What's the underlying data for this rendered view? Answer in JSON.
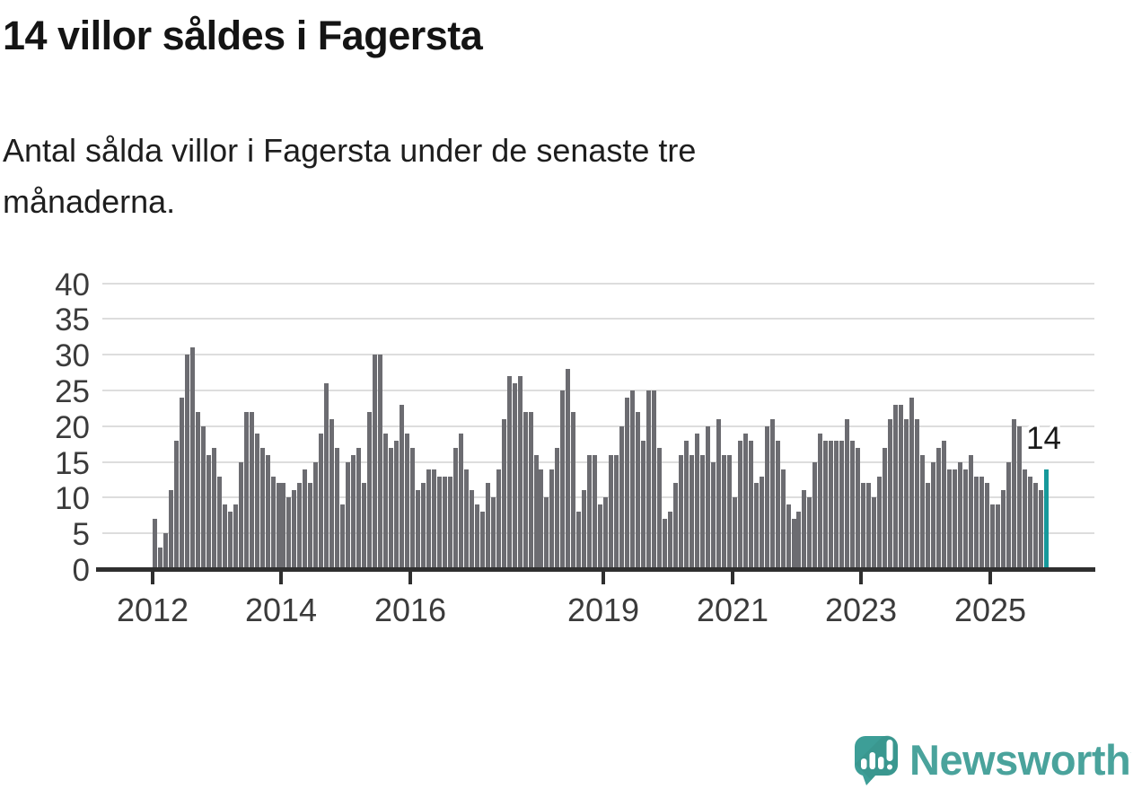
{
  "title": "14 villor såldes i Fagersta",
  "subtitle": "Antal sålda villor i Fagersta under de senaste tre månaderna.",
  "subtitle_line1": "Antal sålda villor i Fagersta under de senaste tre",
  "subtitle_line2": "månaderna.",
  "annotation": {
    "value_label": "14"
  },
  "branding": {
    "name": "Newsworthy"
  },
  "colors": {
    "bar": "#6c6c71",
    "highlight": "#16999b",
    "axis": "#2f2f2f",
    "grid": "#dddddd",
    "tick_label": "#3b3b3b",
    "brand_bubble": "#3d9e97",
    "brand_text": "#4aa39c"
  },
  "chart_data": {
    "type": "bar",
    "title": "14 villor såldes i Fagersta",
    "subtitle": "Antal sålda villor i Fagersta under de senaste tre månaderna.",
    "x_start_month": "2012-01",
    "x_end_month": "2025-11",
    "x_frequency": "monthly",
    "x_tick_years": [
      2012,
      2014,
      2016,
      2019,
      2021,
      2023,
      2025
    ],
    "y_ticks": [
      0,
      5,
      10,
      15,
      20,
      25,
      30,
      35,
      40
    ],
    "ylim": [
      0,
      40
    ],
    "grid": true,
    "legend": false,
    "highlight_last": true,
    "last_value": 14,
    "values": [
      7,
      3,
      5,
      11,
      18,
      24,
      30,
      31,
      22,
      20,
      16,
      17,
      13,
      9,
      8,
      9,
      15,
      22,
      22,
      19,
      17,
      16,
      13,
      12,
      12,
      10,
      11,
      12,
      14,
      12,
      15,
      19,
      26,
      21,
      17,
      9,
      15,
      16,
      17,
      12,
      22,
      30,
      30,
      19,
      17,
      18,
      23,
      19,
      17,
      11,
      12,
      14,
      14,
      13,
      13,
      13,
      17,
      19,
      14,
      11,
      9,
      8,
      12,
      10,
      14,
      21,
      27,
      26,
      27,
      22,
      22,
      16,
      14,
      10,
      14,
      17,
      25,
      28,
      22,
      8,
      11,
      16,
      16,
      9,
      10,
      16,
      16,
      20,
      24,
      25,
      22,
      18,
      25,
      25,
      17,
      7,
      8,
      12,
      16,
      18,
      16,
      19,
      16,
      20,
      15,
      21,
      16,
      16,
      10,
      18,
      19,
      18,
      12,
      13,
      20,
      21,
      18,
      14,
      9,
      7,
      8,
      11,
      10,
      15,
      19,
      18,
      18,
      18,
      18,
      21,
      18,
      17,
      12,
      12,
      10,
      13,
      17,
      21,
      23,
      23,
      21,
      24,
      21,
      16,
      12,
      15,
      17,
      18,
      14,
      14,
      15,
      14,
      16,
      13,
      13,
      12,
      9,
      9,
      11,
      15,
      21,
      20,
      14,
      13,
      12,
      11,
      14
    ]
  }
}
